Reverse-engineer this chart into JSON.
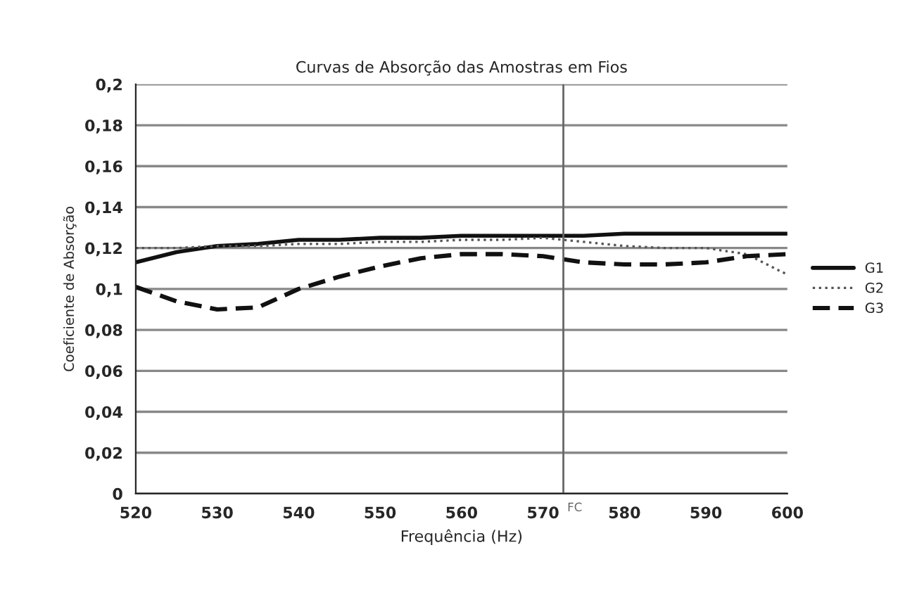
{
  "chart_data": {
    "type": "line",
    "title": "Curvas de Absorção das Amostras em Fios",
    "xlabel": "Frequência (Hz)",
    "ylabel": "Coeficiente de Absorção",
    "x": [
      520,
      525,
      530,
      535,
      540,
      545,
      550,
      555,
      560,
      565,
      570,
      575,
      580,
      585,
      590,
      595,
      600
    ],
    "series": [
      {
        "name": "G1",
        "color": "#111111",
        "line_style": "solid",
        "values": [
          0.113,
          0.118,
          0.121,
          0.122,
          0.124,
          0.124,
          0.125,
          0.125,
          0.126,
          0.126,
          0.126,
          0.126,
          0.127,
          0.127,
          0.127,
          0.127,
          0.127
        ]
      },
      {
        "name": "G2",
        "color": "#555555",
        "line_style": "dotted",
        "values": [
          0.12,
          0.12,
          0.121,
          0.121,
          0.122,
          0.122,
          0.123,
          0.123,
          0.124,
          0.124,
          0.125,
          0.123,
          0.121,
          0.12,
          0.12,
          0.117,
          0.107
        ]
      },
      {
        "name": "G3",
        "color": "#111111",
        "line_style": "dashed",
        "values": [
          0.101,
          0.094,
          0.09,
          0.091,
          0.1,
          0.106,
          0.111,
          0.115,
          0.117,
          0.117,
          0.116,
          0.113,
          0.112,
          0.112,
          0.113,
          0.116,
          0.117
        ]
      }
    ],
    "xlim": [
      520,
      600
    ],
    "xticks": [
      520,
      530,
      540,
      550,
      560,
      570,
      580,
      590,
      600
    ],
    "ylim": [
      0,
      0.2
    ],
    "yticks": [
      {
        "value": 0,
        "label": "0"
      },
      {
        "value": 0.02,
        "label": "0,02"
      },
      {
        "value": 0.04,
        "label": "0,04"
      },
      {
        "value": 0.06,
        "label": "0,06"
      },
      {
        "value": 0.08,
        "label": "0,08"
      },
      {
        "value": 0.1,
        "label": "0,1"
      },
      {
        "value": 0.12,
        "label": "0,12"
      },
      {
        "value": 0.14,
        "label": "0,14"
      },
      {
        "value": 0.16,
        "label": "0,16"
      },
      {
        "value": 0.18,
        "label": "0,18"
      },
      {
        "value": 0.2,
        "label": "0,2"
      }
    ],
    "ref_lines": [
      {
        "axis": "x",
        "value": 572.5,
        "label": "FC",
        "color": "#666666"
      }
    ],
    "grid": "y",
    "legend": "right",
    "marker": "none"
  }
}
